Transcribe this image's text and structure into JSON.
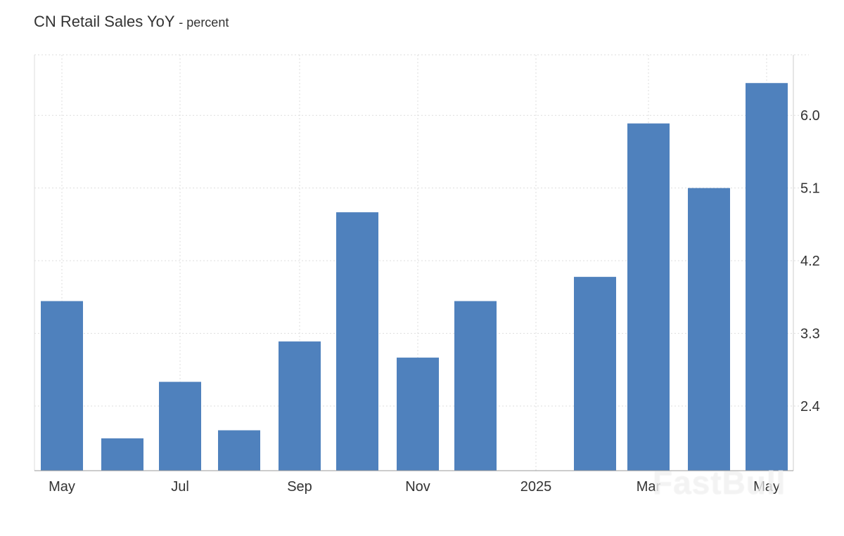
{
  "chart_data": {
    "type": "bar",
    "title": "CN Retail Sales YoY",
    "subtitle": "- percent",
    "x_tick_labels": [
      "May",
      "Jul",
      "Sep",
      "Nov",
      "2025",
      "Mar",
      "May"
    ],
    "categories": [
      "May 2024",
      "Jun 2024",
      "Jul 2024",
      "Aug 2024",
      "Sep 2024",
      "Oct 2024",
      "Nov 2024",
      "Dec 2024",
      "Jan 2025",
      "Feb 2025",
      "Mar 2025",
      "Apr 2025",
      "May 2025"
    ],
    "values": [
      3.7,
      2.0,
      2.7,
      2.1,
      3.2,
      4.8,
      3.0,
      3.7,
      null,
      4.0,
      5.9,
      5.1,
      6.4
    ],
    "y_ticks": [
      2.4,
      3.3,
      4.2,
      5.1,
      6.0
    ],
    "ylim": [
      1.6,
      6.75
    ],
    "y_axis_position": "right",
    "grid": true,
    "bar_color": "#4f81bd"
  },
  "watermark": "FastBull"
}
